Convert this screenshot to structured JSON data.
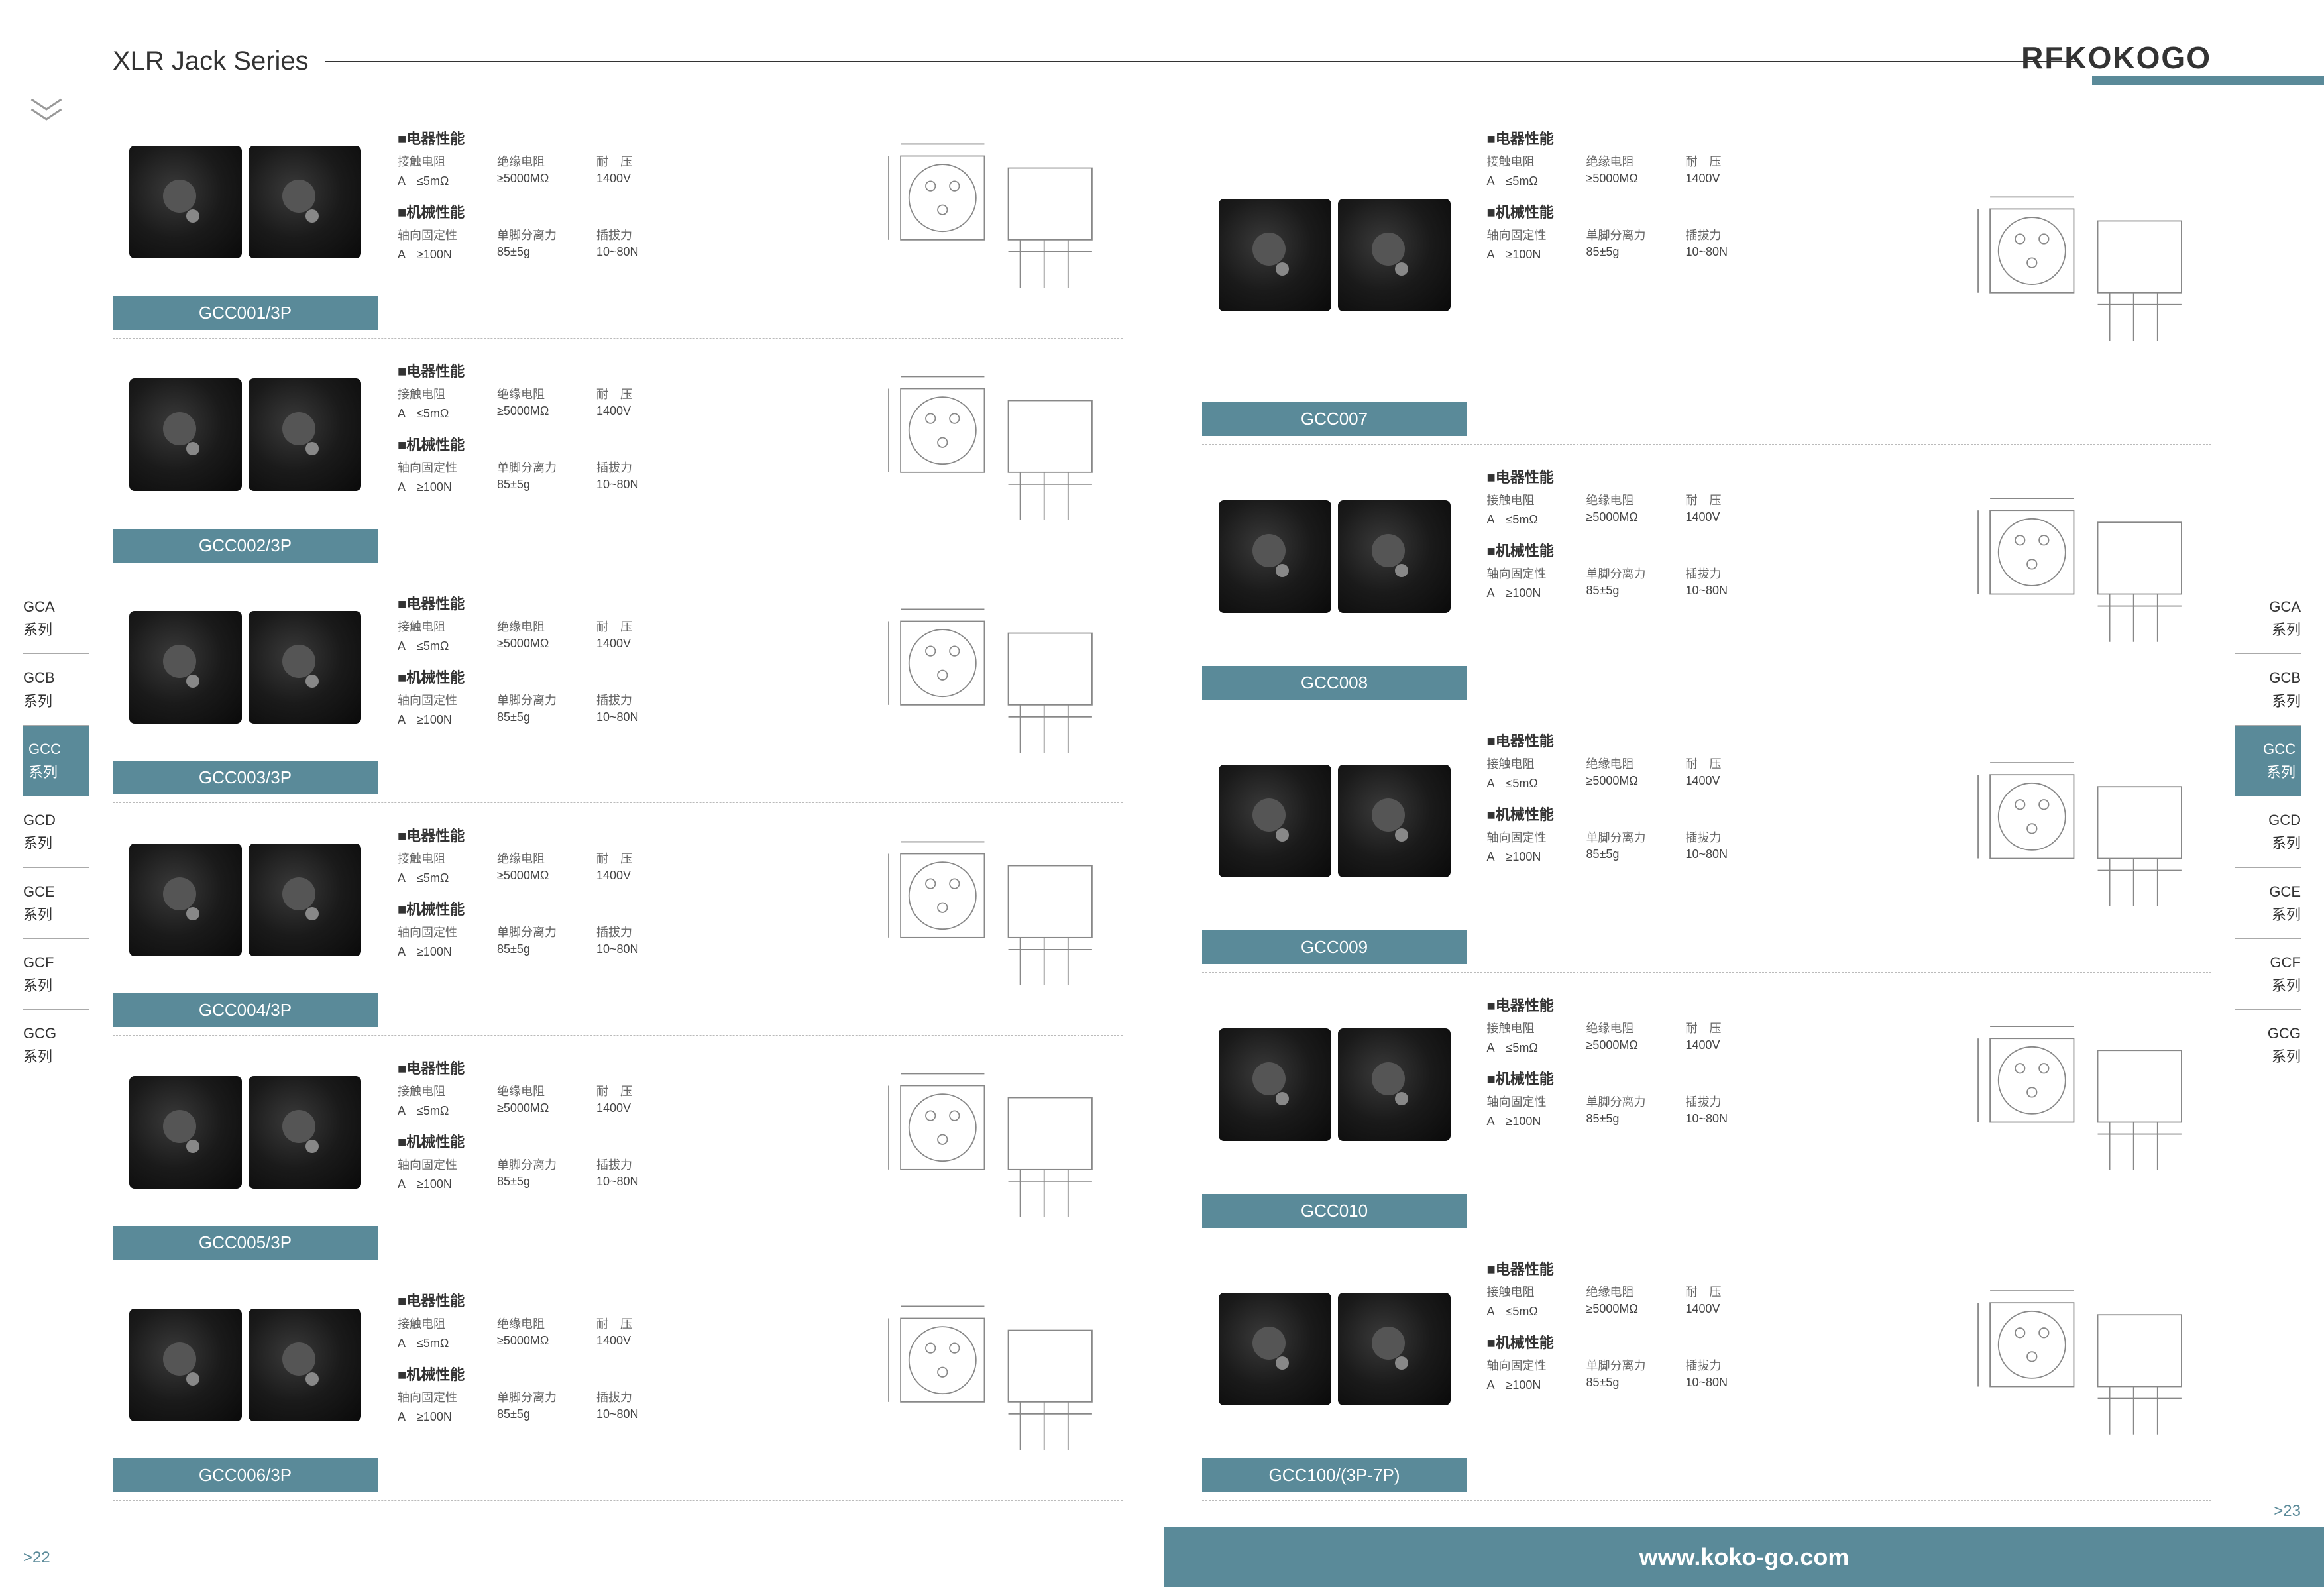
{
  "header": {
    "series_title": "XLR Jack Series",
    "brand": "RFKOKOGO"
  },
  "sidenav": {
    "items": [
      {
        "code": "GCA",
        "label": "系列",
        "active": false
      },
      {
        "code": "GCB",
        "label": "系列",
        "active": false
      },
      {
        "code": "GCC",
        "label": "系列",
        "active": true
      },
      {
        "code": "GCD",
        "label": "系列",
        "active": false
      },
      {
        "code": "GCE",
        "label": "系列",
        "active": false
      },
      {
        "code": "GCF",
        "label": "系列",
        "active": false
      },
      {
        "code": "GCG",
        "label": "系列",
        "active": false
      }
    ]
  },
  "spec_labels": {
    "elec_title": "■电器性能",
    "mech_title": "■机械性能",
    "contact_res": "接触电阻",
    "insul_res": "绝缘电阻",
    "voltage": "耐　压",
    "axial": "轴向固定性",
    "separation": "单脚分离力",
    "insertion": "插拔力",
    "prefix": "A"
  },
  "spec_values": {
    "contact_res": "≤5mΩ",
    "insul_res": "≥5000MΩ",
    "voltage": "1400V",
    "axial": "≥100N",
    "separation": "85±5g",
    "insertion": "10~80N"
  },
  "products_left": [
    {
      "model": "GCC001/3P"
    },
    {
      "model": "GCC002/3P"
    },
    {
      "model": "GCC003/3P"
    },
    {
      "model": "GCC004/3P"
    },
    {
      "model": "GCC005/3P"
    },
    {
      "model": "GCC006/3P"
    }
  ],
  "products_right": [
    {
      "model": "GCC007"
    },
    {
      "model": "GCC008"
    },
    {
      "model": "GCC009"
    },
    {
      "model": "GCC010"
    },
    {
      "model": "GCC100/(3P-7P)"
    }
  ],
  "footer": {
    "url": "www.koko-go.com",
    "page_left": ">22",
    "page_right": ">23"
  },
  "colors": {
    "accent": "#5a8a99",
    "text": "#333333",
    "muted": "#666666"
  }
}
